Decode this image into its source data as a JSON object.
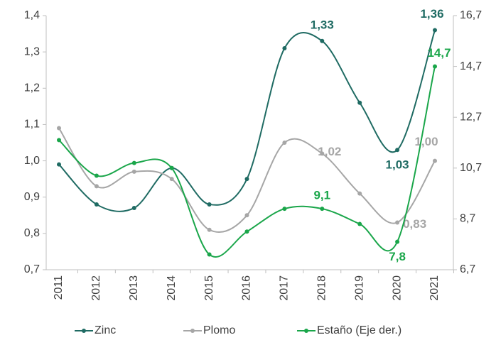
{
  "chart_data": {
    "type": "line",
    "categories": [
      "2011",
      "2012",
      "2013",
      "2014",
      "2015",
      "2016",
      "2017",
      "2018",
      "2019",
      "2020",
      "2021"
    ],
    "series": [
      {
        "name": "Zinc",
        "color": "#1f6b63",
        "axis": "y",
        "values": [
          0.99,
          0.88,
          0.87,
          0.98,
          0.88,
          0.95,
          1.31,
          1.33,
          1.16,
          1.03,
          1.36
        ],
        "value_labels": [
          null,
          null,
          null,
          null,
          null,
          null,
          null,
          "1,33",
          null,
          "1,03",
          "1,36"
        ]
      },
      {
        "name": "Plomo",
        "color": "#a6a6a6",
        "axis": "y",
        "values": [
          1.09,
          0.93,
          0.97,
          0.95,
          0.81,
          0.85,
          1.05,
          1.02,
          0.91,
          0.83,
          1.0
        ],
        "value_labels": [
          null,
          null,
          null,
          null,
          null,
          null,
          null,
          "1,02",
          null,
          "0,83",
          "1,00"
        ]
      },
      {
        "name": "Estaño (Eje der.)",
        "color": "#1aa64a",
        "axis": "y2",
        "values": [
          11.8,
          10.4,
          10.9,
          10.7,
          7.3,
          8.2,
          9.1,
          9.1,
          8.5,
          7.8,
          14.7
        ],
        "value_labels": [
          null,
          null,
          null,
          null,
          null,
          null,
          null,
          "9,1",
          null,
          "7,8",
          "14,7"
        ]
      }
    ],
    "ylim": [
      0.7,
      1.4
    ],
    "yticks": [
      {
        "value": 0.7,
        "label": "0,7"
      },
      {
        "value": 0.8,
        "label": "0,8"
      },
      {
        "value": 0.9,
        "label": "0,9"
      },
      {
        "value": 1.0,
        "label": "1,0"
      },
      {
        "value": 1.1,
        "label": "1,1"
      },
      {
        "value": 1.2,
        "label": "1,2"
      },
      {
        "value": 1.3,
        "label": "1,3"
      },
      {
        "value": 1.4,
        "label": "1,4"
      }
    ],
    "y2lim": [
      6.7,
      16.7
    ],
    "y2ticks": [
      {
        "value": 6.7,
        "label": "6,7"
      },
      {
        "value": 8.7,
        "label": "8,7"
      },
      {
        "value": 10.7,
        "label": "10,7"
      },
      {
        "value": 12.7,
        "label": "12,7"
      },
      {
        "value": 14.7,
        "label": "14,7"
      },
      {
        "value": 16.7,
        "label": "16,7"
      }
    ],
    "grid": false,
    "legend": "bottom"
  }
}
